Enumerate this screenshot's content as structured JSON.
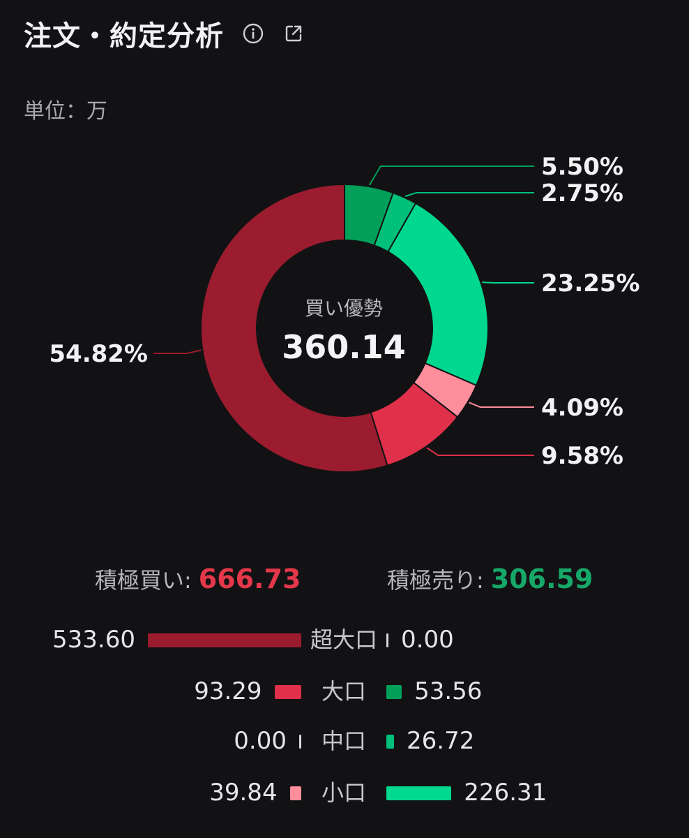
{
  "header": {
    "title": "注文・約定分析",
    "info_icon": "info-icon",
    "share_icon": "share-icon"
  },
  "unit_label": "単位：万",
  "chart_data": {
    "type": "pie",
    "donut": true,
    "center_label": "買い優勢",
    "center_value": "360.14",
    "slices": [
      {
        "label": "5.50%",
        "value": 5.5,
        "color": "#00a05a"
      },
      {
        "label": "2.75%",
        "value": 2.75,
        "color": "#00c07a"
      },
      {
        "label": "23.25%",
        "value": 23.25,
        "color": "#00d88f"
      },
      {
        "label": "4.09%",
        "value": 4.09,
        "color": "#ff8e9c"
      },
      {
        "label": "9.58%",
        "value": 9.58,
        "color": "#e0304a"
      },
      {
        "label": "54.82%",
        "value": 54.82,
        "color": "#9b1c2e"
      }
    ]
  },
  "summary": {
    "buy_label": "積極買い:",
    "buy_value": "666.73",
    "sell_label": "積極売り:",
    "sell_value": "306.59"
  },
  "breakdown": {
    "buy_color_strong": "#9b1c2e",
    "rows": [
      {
        "label": "超大口",
        "buy": "533.60",
        "sell": "0.00",
        "buy_value": 533.6,
        "sell_value": 0.0,
        "buy_color": "#9b1c2e",
        "sell_color": "#00a05a"
      },
      {
        "label": "大口",
        "buy": "93.29",
        "sell": "53.56",
        "buy_value": 93.29,
        "sell_value": 53.56,
        "buy_color": "#e0304a",
        "sell_color": "#00a05a"
      },
      {
        "label": "中口",
        "buy": "0.00",
        "sell": "26.72",
        "buy_value": 0.0,
        "sell_value": 26.72,
        "buy_color": "#e0304a",
        "sell_color": "#00c07a"
      },
      {
        "label": "小口",
        "buy": "39.84",
        "sell": "226.31",
        "buy_value": 39.84,
        "sell_value": 226.31,
        "buy_color": "#ff8e9c",
        "sell_color": "#00d88f"
      }
    ]
  }
}
